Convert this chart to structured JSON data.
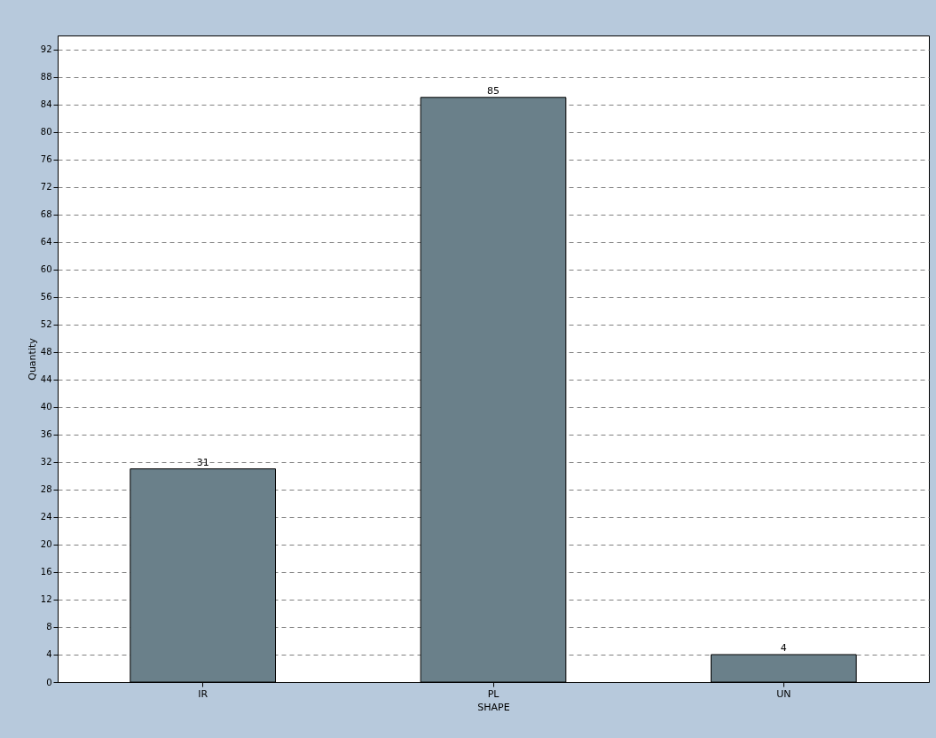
{
  "chart_data": {
    "type": "bar",
    "xlabel": "SHAPE",
    "ylabel": "Quantity",
    "categories": [
      "IR",
      "PL",
      "UN"
    ],
    "values": [
      31,
      85,
      4
    ],
    "color": "#6a808a",
    "ylim": [
      0,
      94
    ],
    "yticks": [
      0,
      4,
      8,
      12,
      16,
      20,
      24,
      28,
      32,
      36,
      40,
      44,
      48,
      52,
      56,
      60,
      64,
      68,
      72,
      76,
      80,
      84,
      88,
      92
    ],
    "grid": "y",
    "data_labels": true
  }
}
